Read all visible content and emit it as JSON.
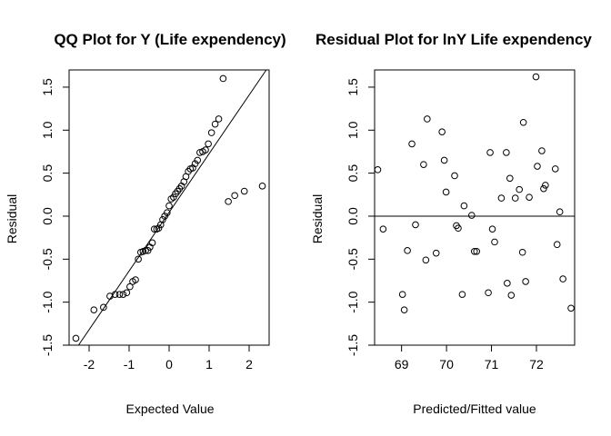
{
  "chart_data": [
    {
      "type": "scatter",
      "title": "QQ Plot for Y (Life expendency)",
      "xlabel": "Expected Value",
      "ylabel": "Residual",
      "xlim": [
        -2.5,
        2.5
      ],
      "ylim": [
        -1.5,
        1.7
      ],
      "xticks": [
        -2,
        -1,
        0,
        1,
        2
      ],
      "xtick_labels": [
        "-2",
        "-1",
        "0",
        "1",
        "2"
      ],
      "yticks": [
        -1.5,
        -1.0,
        -0.5,
        0.0,
        0.5,
        1.0,
        1.5
      ],
      "ytick_labels": [
        "-1.5",
        "-1.0",
        "-0.5",
        "0.0",
        "0.5",
        "1.0",
        "1.5"
      ],
      "grid": false,
      "reference_line": {
        "slope": 0.682,
        "intercept": 0.044
      },
      "points": {
        "x": [
          -2.33,
          -1.88,
          -1.64,
          -1.48,
          -1.35,
          -1.24,
          -1.15,
          -1.06,
          -0.98,
          -0.91,
          -0.84,
          -0.77,
          -0.71,
          -0.65,
          -0.59,
          -0.53,
          -0.48,
          -0.42,
          -0.37,
          -0.31,
          -0.26,
          -0.21,
          -0.16,
          -0.11,
          -0.05,
          0.0,
          0.05,
          0.11,
          0.16,
          0.21,
          0.26,
          0.31,
          0.37,
          0.42,
          0.48,
          0.53,
          0.59,
          0.65,
          0.71,
          0.77,
          0.84,
          0.91,
          0.98,
          1.06,
          1.15,
          1.24,
          1.35,
          1.48,
          1.64,
          1.88,
          2.33
        ],
        "y": [
          -1.42,
          -1.09,
          -1.06,
          -0.93,
          -0.91,
          -0.91,
          -0.91,
          -0.89,
          -0.82,
          -0.76,
          -0.74,
          -0.5,
          -0.42,
          -0.41,
          -0.4,
          -0.4,
          -0.36,
          -0.31,
          -0.15,
          -0.15,
          -0.14,
          -0.1,
          -0.04,
          0.0,
          0.04,
          0.12,
          0.2,
          0.22,
          0.26,
          0.29,
          0.32,
          0.35,
          0.4,
          0.46,
          0.52,
          0.55,
          0.56,
          0.61,
          0.65,
          0.74,
          0.75,
          0.77,
          0.84,
          0.97,
          1.07,
          1.13,
          1.6,
          0.17,
          0.24,
          0.29,
          0.35
        ]
      }
    },
    {
      "type": "scatter",
      "title": "Residual Plot for lnY Life expendency",
      "xlabel": "Predicted/Fitted value",
      "ylabel": "Residual",
      "xlim": [
        68.4,
        72.85
      ],
      "ylim": [
        -1.5,
        1.7
      ],
      "xticks": [
        69,
        70,
        71,
        72
      ],
      "xtick_labels": [
        "69",
        "70",
        "71",
        "72"
      ],
      "yticks": [
        -1.5,
        -1.0,
        -0.5,
        0.0,
        0.5,
        1.0,
        1.5
      ],
      "ytick_labels": [
        "-1.5",
        "-1.0",
        "-0.5",
        "0.0",
        "0.5",
        "1.0",
        "1.5"
      ],
      "grid": false,
      "reference_line": {
        "y": 0
      },
      "points": {
        "x": [
          68.47,
          68.59,
          69.02,
          69.06,
          69.13,
          69.23,
          69.31,
          69.49,
          69.54,
          69.57,
          69.77,
          69.9,
          69.95,
          69.99,
          70.18,
          70.22,
          70.26,
          70.35,
          70.39,
          70.56,
          70.62,
          70.67,
          70.93,
          70.97,
          71.02,
          71.07,
          71.22,
          71.33,
          71.35,
          71.41,
          71.44,
          71.53,
          71.62,
          71.69,
          71.71,
          71.76,
          71.84,
          71.99,
          72.02,
          72.12,
          72.16,
          72.2,
          72.42,
          72.46,
          72.52,
          72.59,
          72.77
        ],
        "y": [
          0.54,
          -0.15,
          -0.91,
          -1.09,
          -0.4,
          0.84,
          -0.1,
          0.6,
          -0.51,
          1.13,
          -0.43,
          0.98,
          0.65,
          0.28,
          0.47,
          -0.11,
          -0.14,
          -0.91,
          0.12,
          0.01,
          -0.41,
          -0.41,
          -0.89,
          0.74,
          -0.15,
          -0.3,
          0.21,
          0.74,
          -0.78,
          0.44,
          -0.92,
          0.21,
          0.31,
          -0.42,
          1.09,
          -0.76,
          0.22,
          1.62,
          0.58,
          0.76,
          0.32,
          0.36,
          0.55,
          -0.33,
          0.05,
          -0.73,
          -1.07
        ]
      }
    }
  ]
}
